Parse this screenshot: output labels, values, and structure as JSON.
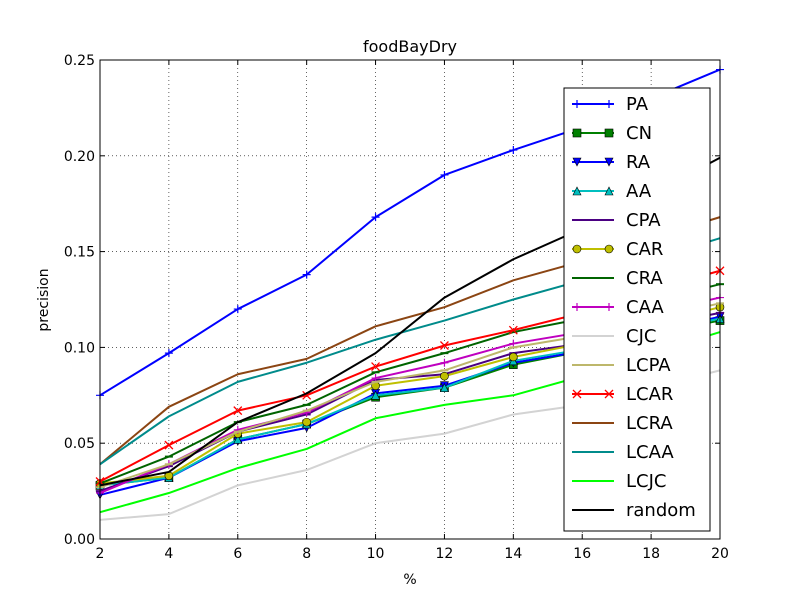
{
  "chart_data": {
    "type": "line",
    "title": "foodBayDry",
    "xlabel": "%",
    "ylabel": "precision",
    "xlim": [
      2,
      20
    ],
    "ylim": [
      0.0,
      0.25
    ],
    "x": [
      2,
      4,
      6,
      8,
      10,
      12,
      14,
      16,
      18,
      20
    ],
    "x_tick_labels": [
      "2",
      "4",
      "6",
      "8",
      "10",
      "12",
      "14",
      "16",
      "18",
      "20"
    ],
    "y_ticks": [
      0.0,
      0.05,
      0.1,
      0.15,
      0.2,
      0.25
    ],
    "y_tick_labels": [
      "0.00",
      "0.05",
      "0.10",
      "0.15",
      "0.20",
      "0.25"
    ],
    "grid": true,
    "legend_position": "right",
    "series": [
      {
        "name": "PA",
        "color": "#0000ff",
        "marker": "plus",
        "values": [
          0.075,
          0.097,
          0.12,
          0.138,
          0.168,
          0.19,
          0.203,
          0.215,
          0.23,
          0.245
        ]
      },
      {
        "name": "CN",
        "color": "#008000",
        "marker": "square",
        "values": [
          0.028,
          0.032,
          0.052,
          0.06,
          0.074,
          0.079,
          0.091,
          0.098,
          0.107,
          0.114
        ]
      },
      {
        "name": "RA",
        "color": "#0000ff",
        "marker": "triangle-down",
        "values": [
          0.023,
          0.032,
          0.051,
          0.058,
          0.076,
          0.08,
          0.092,
          0.098,
          0.108,
          0.116
        ]
      },
      {
        "name": "AA",
        "color": "#00bfbf",
        "marker": "triangle-up",
        "values": [
          0.028,
          0.032,
          0.052,
          0.06,
          0.075,
          0.079,
          0.093,
          0.099,
          0.108,
          0.115
        ]
      },
      {
        "name": "CPA",
        "color": "#4b0082",
        "marker": "hline",
        "values": [
          0.025,
          0.038,
          0.056,
          0.065,
          0.083,
          0.086,
          0.097,
          0.102,
          0.111,
          0.118
        ]
      },
      {
        "name": "CAR",
        "color": "#bfbf00",
        "marker": "circle",
        "values": [
          0.029,
          0.033,
          0.055,
          0.061,
          0.08,
          0.085,
          0.095,
          0.102,
          0.112,
          0.121
        ]
      },
      {
        "name": "CRA",
        "color": "#006400",
        "marker": "hline",
        "values": [
          0.029,
          0.043,
          0.061,
          0.07,
          0.087,
          0.097,
          0.108,
          0.115,
          0.124,
          0.133
        ]
      },
      {
        "name": "CAA",
        "color": "#bf00bf",
        "marker": "plus",
        "values": [
          0.024,
          0.039,
          0.057,
          0.066,
          0.084,
          0.092,
          0.102,
          0.108,
          0.118,
          0.126
        ]
      },
      {
        "name": "CJC",
        "color": "#d3d3d3",
        "marker": "none",
        "values": [
          0.01,
          0.013,
          0.028,
          0.036,
          0.05,
          0.055,
          0.065,
          0.07,
          0.079,
          0.088
        ]
      },
      {
        "name": "LCPA",
        "color": "#bdb76b",
        "marker": "hline",
        "values": [
          0.027,
          0.039,
          0.056,
          0.067,
          0.082,
          0.088,
          0.1,
          0.106,
          0.115,
          0.123
        ]
      },
      {
        "name": "LCAR",
        "color": "#ff0000",
        "marker": "x",
        "values": [
          0.03,
          0.049,
          0.067,
          0.075,
          0.09,
          0.101,
          0.109,
          0.118,
          0.13,
          0.14
        ]
      },
      {
        "name": "LCRA",
        "color": "#8b4513",
        "marker": "none",
        "values": [
          0.039,
          0.069,
          0.086,
          0.094,
          0.111,
          0.121,
          0.135,
          0.145,
          0.157,
          0.168
        ]
      },
      {
        "name": "LCAA",
        "color": "#008b8b",
        "marker": "none",
        "values": [
          0.039,
          0.064,
          0.082,
          0.092,
          0.104,
          0.114,
          0.125,
          0.135,
          0.146,
          0.157
        ]
      },
      {
        "name": "LCJC",
        "color": "#00ff00",
        "marker": "none",
        "values": [
          0.014,
          0.024,
          0.037,
          0.047,
          0.063,
          0.07,
          0.075,
          0.085,
          0.097,
          0.108
        ]
      },
      {
        "name": "random",
        "color": "#000000",
        "marker": "none",
        "values": [
          0.028,
          0.035,
          0.061,
          0.076,
          0.097,
          0.126,
          0.146,
          0.162,
          0.18,
          0.199
        ]
      }
    ]
  }
}
